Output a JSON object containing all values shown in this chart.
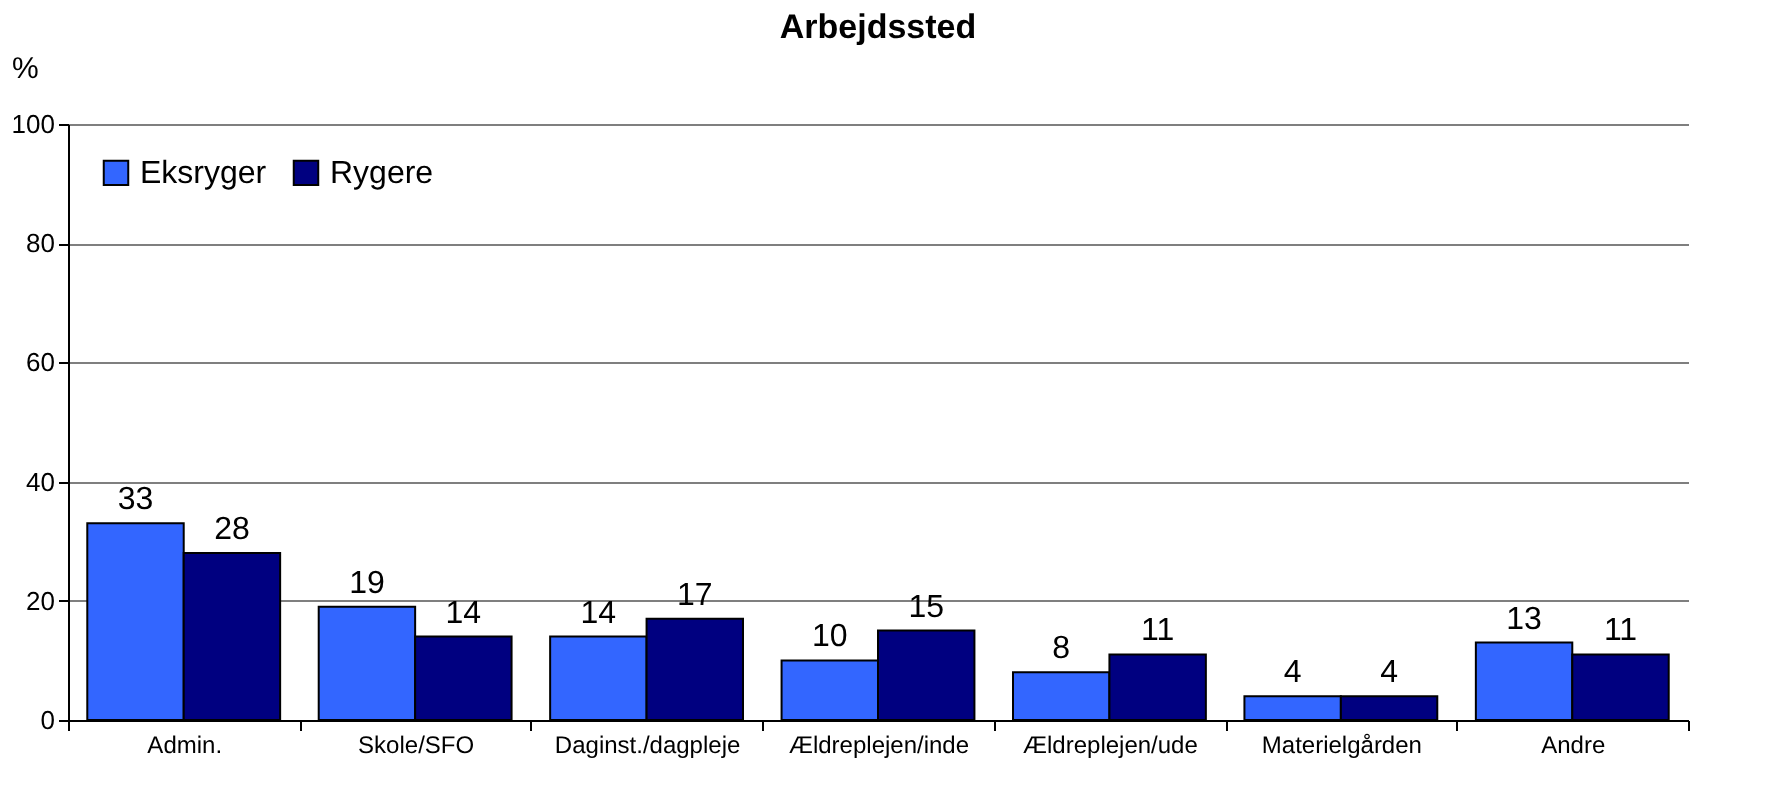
{
  "chart_data": {
    "type": "bar",
    "title": "Arbejdssted",
    "ylabel": "%",
    "categories": [
      "Admin.",
      "Skole/SFO",
      "Daginst./dagpleje",
      "Ældreplejen/inde",
      "Ældreplejen/ude",
      "Materielgården",
      "Andre"
    ],
    "series": [
      {
        "name": "Eksryger",
        "color": "#3366ff",
        "values": [
          33,
          19,
          14,
          10,
          8,
          4,
          13
        ]
      },
      {
        "name": "Rygere",
        "color": "#000080",
        "values": [
          28,
          14,
          17,
          15,
          11,
          4,
          11
        ]
      }
    ],
    "ylim": [
      0,
      100
    ],
    "yticks": [
      0,
      20,
      40,
      60,
      80,
      100
    ],
    "grid": "y",
    "legend": "top left",
    "data_labels": true
  }
}
